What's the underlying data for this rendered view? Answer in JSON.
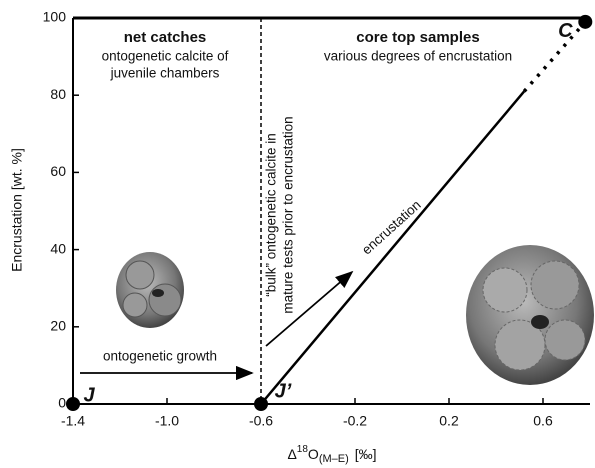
{
  "chart_data": {
    "type": "scatter",
    "y_label": "Encrustation [wt. %]",
    "x_label": {
      "delta": "Δ",
      "sup": "18",
      "element": "O",
      "sub": "(M–E)",
      "unit": "[‰]"
    },
    "xlim": [
      -1.4,
      0.8
    ],
    "ylim": [
      0,
      100
    ],
    "xticks": [
      -1.4,
      {
        "value": -1,
        "label": "-1.0"
      },
      -0.6,
      -0.2,
      0.2,
      0.6
    ],
    "yticks": [
      0,
      20,
      40,
      60,
      80,
      100
    ],
    "points": {
      "x": [
        -1.4,
        -0.6,
        0.78
      ],
      "values": [
        0,
        0,
        99
      ],
      "labels": [
        "J",
        "J’",
        "C"
      ],
      "color": "#000000"
    },
    "lines": [
      {
        "x": [
          -0.6,
          0.52
        ],
        "values": [
          0,
          81
        ],
        "style": "solid"
      },
      {
        "x": [
          0.52,
          0.78
        ],
        "values": [
          81,
          99
        ],
        "style": "dotted"
      }
    ],
    "vline": -0.6,
    "annotations": [
      "net catches",
      "ontogenetic calcite of",
      "juvenile chambers",
      "core top samples",
      "various degrees of encrustation",
      "“bulk” ontogenetic calcite in",
      "mature tests prior to encrustation",
      "encrustation",
      "ontogenetic growth"
    ]
  }
}
